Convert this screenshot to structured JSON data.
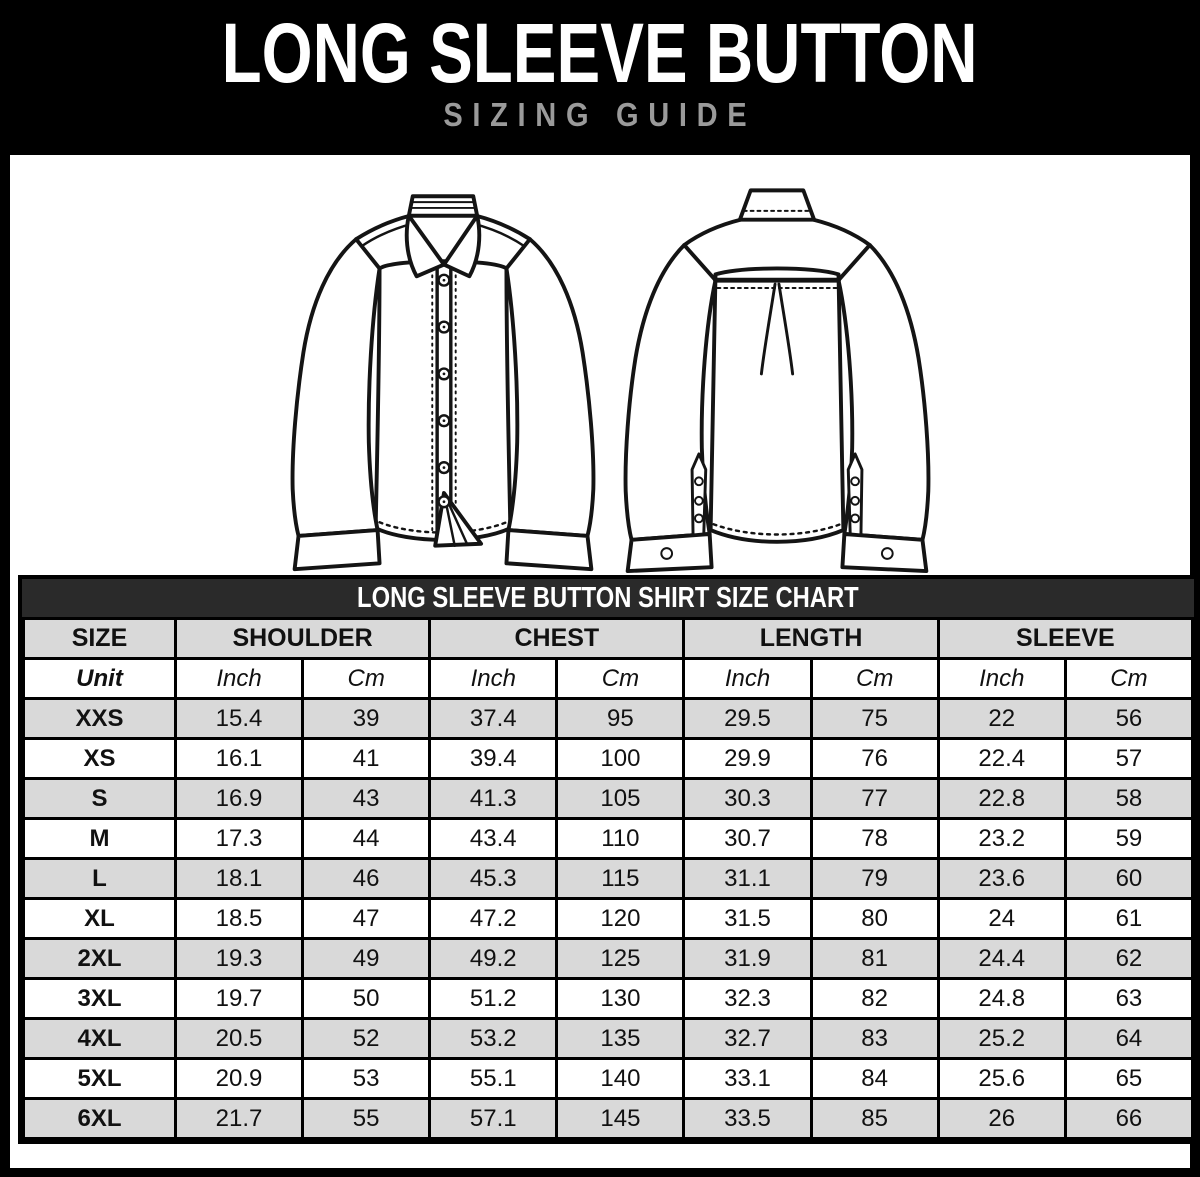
{
  "header": {
    "title": "LONG SLEEVE BUTTON",
    "subtitle": "SIZING GUIDE"
  },
  "illustrations": {
    "front": "long-sleeve-button-shirt-front-line-drawing",
    "back": "long-sleeve-button-shirt-back-line-drawing"
  },
  "colors": {
    "background": "#000000",
    "panel": "#ffffff",
    "table_title_bar": "#2a2a2a",
    "row_shade": "#d9d9d9",
    "subtitle_gray": "#9a9a9a",
    "line_art": "#141414"
  },
  "table": {
    "title": "LONG SLEEVE BUTTON SHIRT SIZE CHART",
    "columns": [
      {
        "label": "SIZE",
        "span": 1
      },
      {
        "label": "SHOULDER",
        "span": 2
      },
      {
        "label": "CHEST",
        "span": 2
      },
      {
        "label": "LENGTH",
        "span": 2
      },
      {
        "label": "SLEEVE",
        "span": 2
      }
    ],
    "unit_row": [
      "Unit",
      "Inch",
      "Cm",
      "Inch",
      "Cm",
      "Inch",
      "Cm",
      "Inch",
      "Cm"
    ],
    "rows": [
      {
        "size": "XXS",
        "values": [
          "15.4",
          "39",
          "37.4",
          "95",
          "29.5",
          "75",
          "22",
          "56"
        ]
      },
      {
        "size": "XS",
        "values": [
          "16.1",
          "41",
          "39.4",
          "100",
          "29.9",
          "76",
          "22.4",
          "57"
        ]
      },
      {
        "size": "S",
        "values": [
          "16.9",
          "43",
          "41.3",
          "105",
          "30.3",
          "77",
          "22.8",
          "58"
        ]
      },
      {
        "size": "M",
        "values": [
          "17.3",
          "44",
          "43.4",
          "110",
          "30.7",
          "78",
          "23.2",
          "59"
        ]
      },
      {
        "size": "L",
        "values": [
          "18.1",
          "46",
          "45.3",
          "115",
          "31.1",
          "79",
          "23.6",
          "60"
        ]
      },
      {
        "size": "XL",
        "values": [
          "18.5",
          "47",
          "47.2",
          "120",
          "31.5",
          "80",
          "24",
          "61"
        ]
      },
      {
        "size": "2XL",
        "values": [
          "19.3",
          "49",
          "49.2",
          "125",
          "31.9",
          "81",
          "24.4",
          "62"
        ]
      },
      {
        "size": "3XL",
        "values": [
          "19.7",
          "50",
          "51.2",
          "130",
          "32.3",
          "82",
          "24.8",
          "63"
        ]
      },
      {
        "size": "4XL",
        "values": [
          "20.5",
          "52",
          "53.2",
          "135",
          "32.7",
          "83",
          "25.2",
          "64"
        ]
      },
      {
        "size": "5XL",
        "values": [
          "20.9",
          "53",
          "55.1",
          "140",
          "33.1",
          "84",
          "25.6",
          "65"
        ]
      },
      {
        "size": "6XL",
        "values": [
          "21.7",
          "55",
          "57.1",
          "145",
          "33.5",
          "85",
          "26",
          "66"
        ]
      }
    ]
  }
}
